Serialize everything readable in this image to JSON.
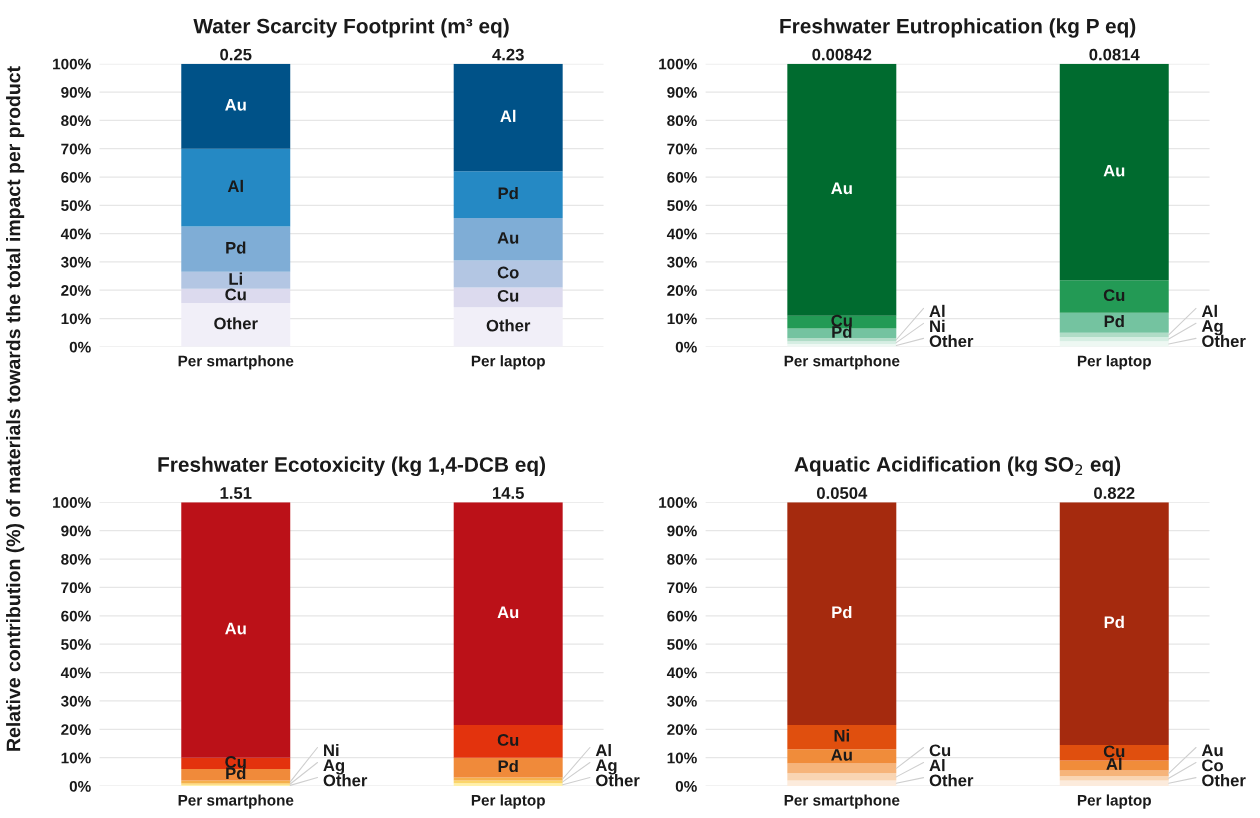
{
  "chart_data": [
    {
      "type": "bar",
      "stacked": true,
      "title": "Water Scarcity Footprint (m³ eq)",
      "ylabel": "Relative contribution (%) of materials towards the total impact per product",
      "categories": [
        "Per smartphone",
        "Per laptop"
      ],
      "ylim": [
        0,
        100
      ],
      "yticks": [
        {
          "value": 0,
          "label": "0%"
        },
        {
          "value": 10,
          "label": "10%"
        },
        {
          "value": 20,
          "label": "20%"
        },
        {
          "value": 30,
          "label": "30%"
        },
        {
          "value": 40,
          "label": "40%"
        },
        {
          "value": 50,
          "label": "50%"
        },
        {
          "value": 60,
          "label": "60%"
        },
        {
          "value": 70,
          "label": "70%"
        },
        {
          "value": 80,
          "label": "80%"
        },
        {
          "value": 90,
          "label": "90%"
        },
        {
          "value": 100,
          "label": "100%"
        }
      ],
      "grid": "y",
      "annotations": [
        {
          "text": "0.25",
          "x": "Per smartphone",
          "y": 100
        },
        {
          "text": "4.23",
          "x": "Per laptop",
          "y": 100
        }
      ],
      "series": [
        {
          "color": "#f1eff8",
          "values": [
            15.5,
            14
          ],
          "value_labels": [
            "Other",
            "Other"
          ]
        },
        {
          "color": "#dcdaee",
          "values": [
            5,
            7
          ],
          "value_labels": [
            "Cu",
            "Cu"
          ]
        },
        {
          "color": "#b3c6e3",
          "values": [
            6,
            9.5
          ],
          "value_labels": [
            "Li",
            "Co"
          ]
        },
        {
          "color": "#7fadd6",
          "values": [
            16,
            15
          ],
          "value_labels": [
            "Pd",
            "Au"
          ]
        },
        {
          "color": "#2589c4",
          "values": [
            27.5,
            16.5
          ],
          "value_labels": [
            "Al",
            "Pd"
          ]
        },
        {
          "color": "#005288",
          "values": [
            30,
            38
          ],
          "value_labels": [
            "Au",
            "Al"
          ]
        }
      ]
    },
    {
      "type": "bar",
      "stacked": true,
      "title": "Freshwater Eutrophication (kg P eq)",
      "categories": [
        "Per smartphone",
        "Per laptop"
      ],
      "ylim": [
        0,
        100
      ],
      "yticks": [
        {
          "value": 0,
          "label": "0%"
        },
        {
          "value": 10,
          "label": "10%"
        },
        {
          "value": 20,
          "label": "20%"
        },
        {
          "value": 30,
          "label": "30%"
        },
        {
          "value": 40,
          "label": "40%"
        },
        {
          "value": 50,
          "label": "50%"
        },
        {
          "value": 60,
          "label": "60%"
        },
        {
          "value": 70,
          "label": "70%"
        },
        {
          "value": 80,
          "label": "80%"
        },
        {
          "value": 90,
          "label": "90%"
        },
        {
          "value": 100,
          "label": "100%"
        }
      ],
      "grid": "y",
      "annotations": [
        {
          "text": "0.00842",
          "x": "Per smartphone",
          "y": 100
        },
        {
          "text": "0.0814",
          "x": "Per laptop",
          "y": 100
        }
      ],
      "series": [
        {
          "color": "#eef8f3",
          "values": [
            1,
            2
          ],
          "value_labels": [
            "Other",
            "Other"
          ]
        },
        {
          "color": "#d6eee3",
          "values": [
            1,
            1.5
          ],
          "value_labels": [
            "Ni",
            "Ag"
          ]
        },
        {
          "color": "#b0dcc7",
          "values": [
            1,
            1.5
          ],
          "value_labels": [
            "Al",
            "Al"
          ]
        },
        {
          "color": "#74c3a0",
          "values": [
            3.5,
            7
          ],
          "value_labels": [
            "Pd",
            "Pd"
          ]
        },
        {
          "color": "#239a55",
          "values": [
            4.5,
            11.5
          ],
          "value_labels": [
            "Cu",
            "Cu"
          ]
        },
        {
          "color": "#006b2f",
          "values": [
            89,
            76.5
          ],
          "value_labels": [
            "Au",
            "Au"
          ]
        }
      ]
    },
    {
      "type": "bar",
      "stacked": true,
      "title": "Freshwater Ecotoxicity (kg 1,4-DCB eq)",
      "categories": [
        "Per smartphone",
        "Per laptop"
      ],
      "ylim": [
        0,
        100
      ],
      "yticks": [
        {
          "value": 0,
          "label": "0%"
        },
        {
          "value": 10,
          "label": "10%"
        },
        {
          "value": 20,
          "label": "20%"
        },
        {
          "value": 30,
          "label": "30%"
        },
        {
          "value": 40,
          "label": "40%"
        },
        {
          "value": 50,
          "label": "50%"
        },
        {
          "value": 60,
          "label": "60%"
        },
        {
          "value": 70,
          "label": "70%"
        },
        {
          "value": 80,
          "label": "80%"
        },
        {
          "value": 90,
          "label": "90%"
        },
        {
          "value": 100,
          "label": "100%"
        }
      ],
      "grid": "y",
      "annotations": [
        {
          "text": "1.51",
          "x": "Per smartphone",
          "y": 100
        },
        {
          "text": "14.5",
          "x": "Per laptop",
          "y": 100
        }
      ],
      "series": [
        {
          "color": "#fff0a8",
          "values": [
            0.5,
            1
          ],
          "value_labels": [
            "Other",
            "Other"
          ]
        },
        {
          "color": "#fbd56b",
          "values": [
            0.5,
            1
          ],
          "value_labels": [
            "Ag",
            "Ag"
          ]
        },
        {
          "color": "#f5b04c",
          "values": [
            1,
            1
          ],
          "value_labels": [
            "Ni",
            "Al"
          ]
        },
        {
          "color": "#f08a3a",
          "values": [
            4,
            7
          ],
          "value_labels": [
            "Pd",
            "Pd"
          ]
        },
        {
          "color": "#e3330d",
          "values": [
            4,
            11.5
          ],
          "value_labels": [
            "Cu",
            "Cu"
          ]
        },
        {
          "color": "#bb1118",
          "values": [
            90,
            78.5
          ],
          "value_labels": [
            "Au",
            "Au"
          ]
        }
      ]
    },
    {
      "type": "bar",
      "stacked": true,
      "title": "Aquatic Acidification (kg SO$_{2}$ eq)",
      "categories": [
        "Per smartphone",
        "Per laptop"
      ],
      "ylim": [
        0,
        100
      ],
      "yticks": [
        {
          "value": 0,
          "label": "0%"
        },
        {
          "value": 10,
          "label": "10%"
        },
        {
          "value": 20,
          "label": "20%"
        },
        {
          "value": 30,
          "label": "30%"
        },
        {
          "value": 40,
          "label": "40%"
        },
        {
          "value": 50,
          "label": "50%"
        },
        {
          "value": 60,
          "label": "60%"
        },
        {
          "value": 70,
          "label": "70%"
        },
        {
          "value": 80,
          "label": "80%"
        },
        {
          "value": 90,
          "label": "90%"
        },
        {
          "value": 100,
          "label": "100%"
        }
      ],
      "grid": "y",
      "annotations": [
        {
          "text": "0.0504",
          "x": "Per smartphone",
          "y": 100
        },
        {
          "text": "0.822",
          "x": "Per laptop",
          "y": 100
        }
      ],
      "series": [
        {
          "color": "#fcebdc",
          "values": [
            2,
            2
          ],
          "value_labels": [
            "Other",
            "Other"
          ]
        },
        {
          "color": "#f9d5b3",
          "values": [
            2.5,
            1.5
          ],
          "value_labels": [
            "Al",
            "Co"
          ]
        },
        {
          "color": "#f6b47a",
          "values": [
            3.5,
            2
          ],
          "value_labels": [
            "Cu",
            "Au"
          ]
        },
        {
          "color": "#f08c3a",
          "values": [
            5,
            3.5
          ],
          "value_labels": [
            "Au",
            "Al"
          ]
        },
        {
          "color": "#e04f0e",
          "values": [
            8.5,
            5.5
          ],
          "value_labels": [
            "Ni",
            "Cu"
          ]
        },
        {
          "color": "#a52a0e",
          "values": [
            78.5,
            85.5
          ],
          "value_labels": [
            "Pd",
            "Pd"
          ]
        }
      ]
    }
  ]
}
